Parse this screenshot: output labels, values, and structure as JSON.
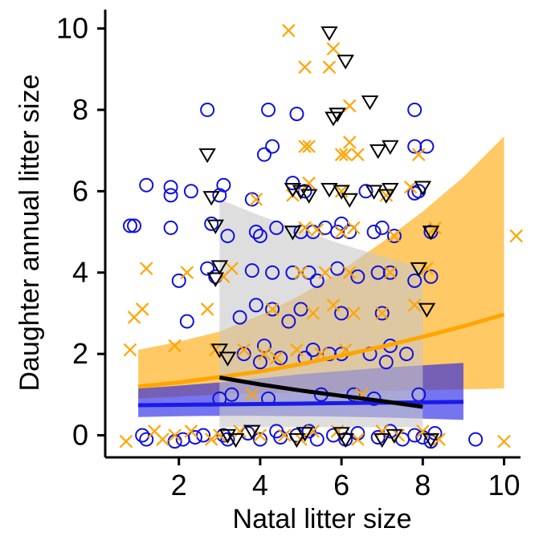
{
  "chart_data": {
    "type": "scatter",
    "xlabel": "Natal litter size",
    "ylabel": "Daughter annual litter size",
    "xlim": [
      0.0,
      10.5
    ],
    "ylim": [
      -0.5,
      10.5
    ],
    "xticks": [
      2,
      4,
      6,
      8,
      10
    ],
    "yticks": [
      0,
      2,
      4,
      6,
      8,
      10
    ],
    "grid": false,
    "legend": "none",
    "colors": {
      "blue": "#1010e0",
      "orange": "#ffa500",
      "black": "#000000"
    },
    "series": [
      {
        "marker": "circle",
        "color": "#1010e0",
        "points": [
          [
            0.8,
            5.15
          ],
          [
            0.9,
            5.15
          ],
          [
            1.2,
            6.15
          ],
          [
            1.1,
            0.0
          ],
          [
            1.2,
            -0.1
          ],
          [
            1.8,
            6.1
          ],
          [
            1.8,
            5.9
          ],
          [
            1.8,
            5.1
          ],
          [
            1.9,
            -0.15
          ],
          [
            2.0,
            3.8
          ],
          [
            2.1,
            -0.1
          ],
          [
            2.2,
            2.8
          ],
          [
            2.3,
            6.0
          ],
          [
            2.4,
            -0.05
          ],
          [
            2.6,
            0.0
          ],
          [
            2.7,
            8.0
          ],
          [
            2.7,
            4.1
          ],
          [
            2.8,
            5.2
          ],
          [
            2.9,
            3.9
          ],
          [
            3.0,
            5.9
          ],
          [
            3.0,
            0.9
          ],
          [
            3.1,
            6.15
          ],
          [
            3.1,
            0.0
          ],
          [
            3.2,
            -0.1
          ],
          [
            3.2,
            4.9
          ],
          [
            3.3,
            1.0
          ],
          [
            3.5,
            2.9
          ],
          [
            3.6,
            2.0
          ],
          [
            3.7,
            0.05
          ],
          [
            3.8,
            5.8
          ],
          [
            3.8,
            4.05
          ],
          [
            3.9,
            5.0
          ],
          [
            3.9,
            3.2
          ],
          [
            4.0,
            1.8
          ],
          [
            4.0,
            4.9
          ],
          [
            4.0,
            -0.1
          ],
          [
            4.1,
            2.2
          ],
          [
            4.1,
            6.9
          ],
          [
            4.2,
            8.0
          ],
          [
            4.2,
            0.9
          ],
          [
            4.3,
            7.1
          ],
          [
            4.3,
            4.0
          ],
          [
            4.3,
            3.1
          ],
          [
            4.4,
            5.1
          ],
          [
            4.4,
            0.1
          ],
          [
            4.5,
            1.9
          ],
          [
            4.5,
            -0.05
          ],
          [
            4.7,
            2.8
          ],
          [
            4.8,
            6.2
          ],
          [
            4.8,
            4.0
          ],
          [
            4.9,
            7.9
          ],
          [
            4.9,
            0.0
          ],
          [
            5.0,
            5.0
          ],
          [
            5.0,
            3.1
          ],
          [
            5.1,
            1.9
          ],
          [
            5.1,
            6.0
          ],
          [
            5.2,
            4.0
          ],
          [
            5.2,
            0.1
          ],
          [
            5.3,
            2.1
          ],
          [
            5.3,
            5.0
          ],
          [
            5.4,
            3.8
          ],
          [
            5.4,
            -0.1
          ],
          [
            5.5,
            1.0
          ],
          [
            5.6,
            5.1
          ],
          [
            5.7,
            2.0
          ],
          [
            5.8,
            0.0
          ],
          [
            5.9,
            5.0
          ],
          [
            5.9,
            4.1
          ],
          [
            6.0,
            3.0
          ],
          [
            6.0,
            5.2
          ],
          [
            6.0,
            2.0
          ],
          [
            6.1,
            -0.1
          ],
          [
            6.2,
            5.0
          ],
          [
            6.3,
            1.0
          ],
          [
            6.4,
            3.9
          ],
          [
            6.4,
            0.05
          ],
          [
            6.6,
            6.0
          ],
          [
            6.7,
            2.0
          ],
          [
            6.8,
            5.0
          ],
          [
            6.8,
            0.9
          ],
          [
            6.9,
            4.0
          ],
          [
            6.9,
            -0.05
          ],
          [
            7.0,
            3.0
          ],
          [
            7.0,
            5.1
          ],
          [
            7.1,
            1.8
          ],
          [
            7.2,
            4.0
          ],
          [
            7.2,
            2.2
          ],
          [
            7.2,
            0.1
          ],
          [
            7.3,
            4.9
          ],
          [
            7.5,
            -0.1
          ],
          [
            7.6,
            2.0
          ],
          [
            7.8,
            3.8
          ],
          [
            7.8,
            0.0
          ],
          [
            7.8,
            7.1
          ],
          [
            7.8,
            8.0
          ],
          [
            7.8,
            5.95
          ],
          [
            7.9,
            1.0
          ],
          [
            7.9,
            6.0
          ],
          [
            8.0,
            -0.05
          ],
          [
            8.1,
            7.1
          ],
          [
            8.2,
            -0.15
          ],
          [
            8.2,
            5.0
          ],
          [
            8.2,
            3.9
          ],
          [
            8.3,
            0.05
          ],
          [
            9.3,
            -0.1
          ]
        ]
      },
      {
        "marker": "cross",
        "color": "#ffa500",
        "points": [
          [
            0.7,
            -0.15
          ],
          [
            0.8,
            2.1
          ],
          [
            0.9,
            2.9
          ],
          [
            1.1,
            3.1
          ],
          [
            1.2,
            4.1
          ],
          [
            1.4,
            0.1
          ],
          [
            1.6,
            -0.1
          ],
          [
            1.9,
            2.2
          ],
          [
            1.9,
            0.0
          ],
          [
            2.2,
            4.0
          ],
          [
            2.3,
            0.1
          ],
          [
            2.7,
            3.1
          ],
          [
            2.8,
            -0.1
          ],
          [
            2.9,
            2.1
          ],
          [
            3.0,
            0.0
          ],
          [
            3.1,
            3.9
          ],
          [
            3.3,
            4.1
          ],
          [
            3.5,
            0.1
          ],
          [
            3.6,
            2.1
          ],
          [
            3.8,
            1.0
          ],
          [
            3.9,
            5.8
          ],
          [
            4.0,
            0.0
          ],
          [
            4.1,
            2.0
          ],
          [
            4.3,
            3.1
          ],
          [
            4.4,
            1.9
          ],
          [
            4.6,
            0.0
          ],
          [
            4.7,
            9.95
          ],
          [
            4.8,
            5.9
          ],
          [
            4.9,
            2.1
          ],
          [
            5.0,
            4.0
          ],
          [
            5.0,
            -0.1
          ],
          [
            5.1,
            5.1
          ],
          [
            5.1,
            9.05
          ],
          [
            5.1,
            7.1
          ],
          [
            5.2,
            7.1
          ],
          [
            5.2,
            6.2
          ],
          [
            5.3,
            3.0
          ],
          [
            5.3,
            0.1
          ],
          [
            5.4,
            5.05
          ],
          [
            5.5,
            2.0
          ],
          [
            5.6,
            4.0
          ],
          [
            5.7,
            9.05
          ],
          [
            5.8,
            9.5
          ],
          [
            5.8,
            3.2
          ],
          [
            5.9,
            0.1
          ],
          [
            6.0,
            6.9
          ],
          [
            6.0,
            6.0
          ],
          [
            6.0,
            5.0
          ],
          [
            6.1,
            2.1
          ],
          [
            6.1,
            6.9
          ],
          [
            6.2,
            8.1
          ],
          [
            6.2,
            7.2
          ],
          [
            6.2,
            4.0
          ],
          [
            6.3,
            3.0
          ],
          [
            6.3,
            5.1
          ],
          [
            6.4,
            -0.1
          ],
          [
            6.4,
            6.9
          ],
          [
            6.5,
            1.0
          ],
          [
            7.0,
            0.1
          ],
          [
            7.0,
            3.0
          ],
          [
            7.1,
            5.9
          ],
          [
            7.2,
            4.0
          ],
          [
            7.3,
            4.9
          ],
          [
            7.4,
            0.0
          ],
          [
            7.7,
            6.1
          ],
          [
            7.8,
            3.2
          ],
          [
            7.9,
            6.9
          ],
          [
            8.0,
            0.1
          ],
          [
            8.1,
            4.1
          ],
          [
            8.3,
            5.1
          ],
          [
            8.4,
            -0.1
          ],
          [
            10.0,
            -0.15
          ],
          [
            10.3,
            4.9
          ]
        ]
      },
      {
        "marker": "triangle-down",
        "color": "#000000",
        "points": [
          [
            2.7,
            6.9
          ],
          [
            2.8,
            5.85
          ],
          [
            2.9,
            5.15
          ],
          [
            2.9,
            3.85
          ],
          [
            3.0,
            4.15
          ],
          [
            3.0,
            2.1
          ],
          [
            3.2,
            1.9
          ],
          [
            3.2,
            0.0
          ],
          [
            3.4,
            -0.1
          ],
          [
            3.8,
            0.1
          ],
          [
            4.8,
            5.0
          ],
          [
            4.8,
            6.05
          ],
          [
            4.9,
            -0.1
          ],
          [
            5.0,
            6.0
          ],
          [
            5.1,
            0.05
          ],
          [
            5.2,
            5.9
          ],
          [
            5.7,
            9.9
          ],
          [
            5.7,
            6.05
          ],
          [
            5.8,
            7.8
          ],
          [
            5.9,
            7.9
          ],
          [
            6.0,
            6.0
          ],
          [
            6.0,
            0.05
          ],
          [
            6.1,
            9.2
          ],
          [
            6.1,
            -0.1
          ],
          [
            6.2,
            5.8
          ],
          [
            6.7,
            8.2
          ],
          [
            6.8,
            6.0
          ],
          [
            6.9,
            7.0
          ],
          [
            7.0,
            -0.1
          ],
          [
            7.1,
            5.9
          ],
          [
            7.2,
            7.1
          ],
          [
            7.2,
            6.05
          ],
          [
            7.3,
            0.0
          ],
          [
            7.9,
            4.1
          ],
          [
            8.0,
            6.1
          ],
          [
            8.1,
            3.1
          ],
          [
            8.2,
            5.0
          ],
          [
            8.2,
            -0.1
          ]
        ]
      }
    ],
    "fits": [
      {
        "name": "orange",
        "color": "#ffa500",
        "x": [
          1,
          2,
          3,
          4,
          5,
          6,
          7,
          8,
          9,
          10
        ],
        "y": [
          1.2,
          1.3,
          1.43,
          1.57,
          1.75,
          1.96,
          2.18,
          2.42,
          2.68,
          2.97
        ],
        "lo": [
          0.9,
          0.95,
          1.0,
          1.03,
          1.05,
          1.07,
          1.09,
          1.11,
          1.13,
          1.15
        ],
        "hi": [
          2.1,
          2.3,
          2.55,
          2.95,
          3.45,
          4.05,
          4.75,
          5.5,
          6.35,
          7.35
        ]
      },
      {
        "name": "blue",
        "color": "#1010e0",
        "x": [
          1,
          2,
          3,
          4,
          5,
          6,
          7,
          8,
          9
        ],
        "y": [
          0.74,
          0.75,
          0.76,
          0.77,
          0.78,
          0.79,
          0.8,
          0.81,
          0.82
        ],
        "lo": [
          0.45,
          0.47,
          0.48,
          0.48,
          0.47,
          0.46,
          0.44,
          0.41,
          0.38
        ],
        "hi": [
          1.15,
          1.22,
          1.3,
          1.4,
          1.5,
          1.58,
          1.66,
          1.72,
          1.78
        ]
      },
      {
        "name": "black",
        "color": "#000000",
        "x": [
          3,
          4,
          5,
          6,
          7,
          8
        ],
        "y": [
          1.42,
          1.25,
          1.1,
          0.97,
          0.84,
          0.7
        ],
        "lo": [
          0.2,
          0.2,
          0.2,
          0.2,
          0.2,
          0.2
        ],
        "hi": [
          5.8,
          5.4,
          5.05,
          4.7,
          4.4,
          4.1
        ]
      }
    ]
  }
}
